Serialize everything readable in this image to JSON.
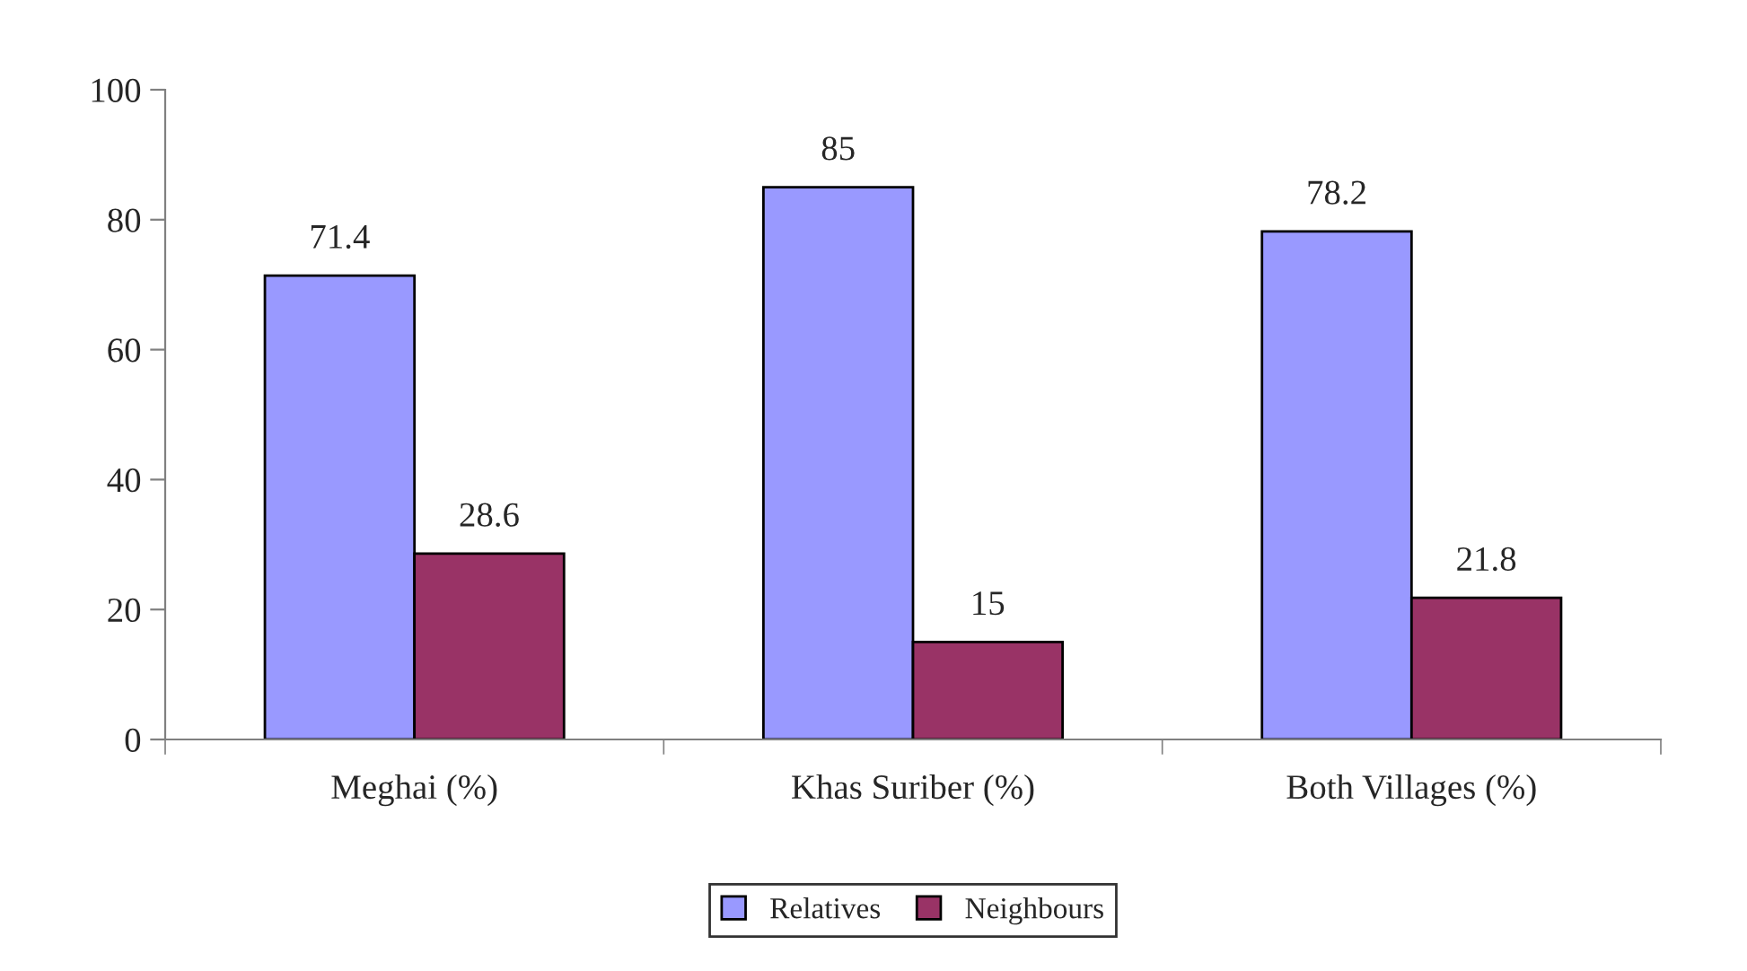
{
  "chart_data": {
    "type": "bar",
    "categories": [
      "Meghai (%)",
      "Khas Suriber (%)",
      "Both Villages (%)"
    ],
    "series": [
      {
        "name": "Relatives",
        "color": "#9999ff",
        "values": [
          71.4,
          85,
          78.2
        ]
      },
      {
        "name": "Neighbours",
        "color": "#993366",
        "values": [
          28.6,
          15,
          21.8
        ]
      }
    ],
    "ylim": [
      0,
      100
    ],
    "yticks": [
      0,
      20,
      40,
      60,
      80,
      100
    ],
    "data_labels": true,
    "grid": false,
    "legend": "bottom"
  }
}
